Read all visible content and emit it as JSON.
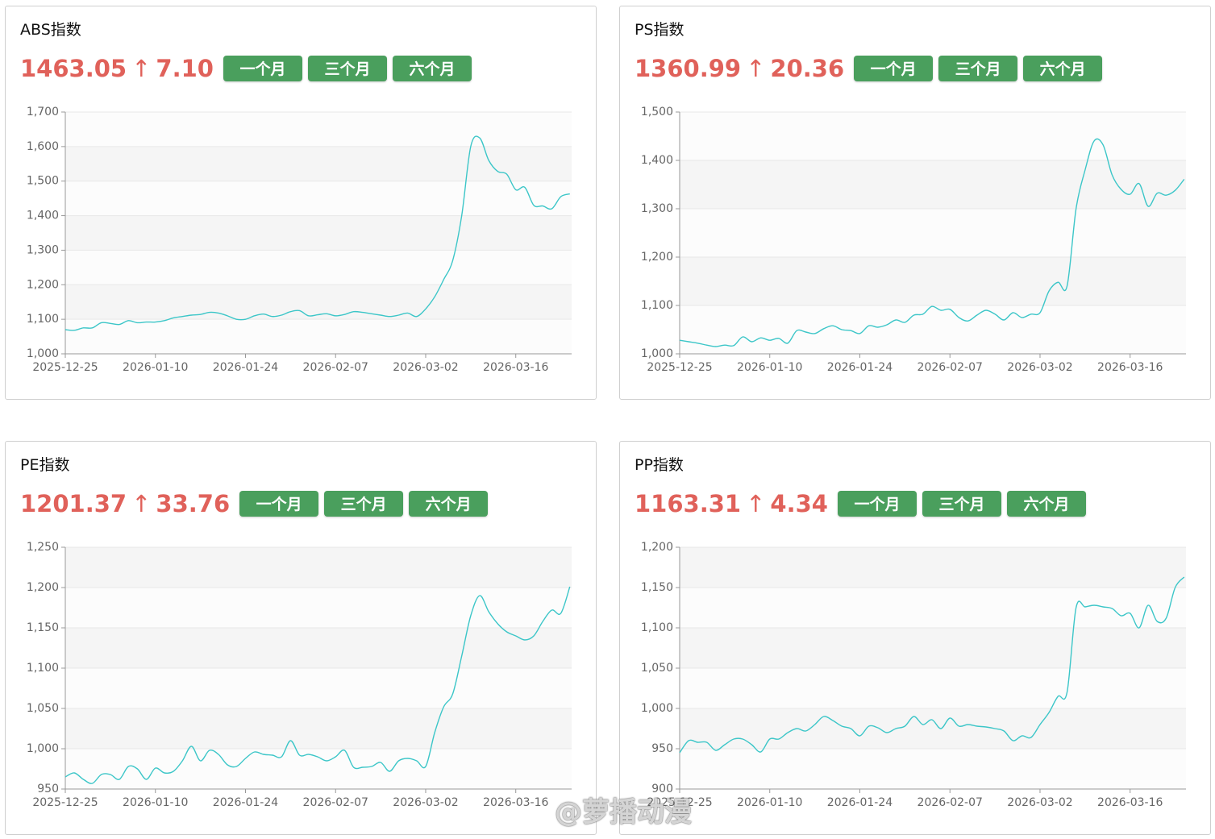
{
  "watermark": "@萝播动漫",
  "chart_data": [
    {
      "type": "line",
      "title": "ABS指数",
      "price": "1463.05",
      "arrow": "↑",
      "change": "7.10",
      "buttons": [
        "一个月",
        "三个月",
        "六个月"
      ],
      "categories": [
        "2025-12-25",
        null,
        null,
        null,
        null,
        null,
        null,
        null,
        null,
        null,
        "2026-01-10",
        null,
        null,
        null,
        null,
        null,
        null,
        null,
        null,
        null,
        "2026-01-24",
        null,
        null,
        null,
        null,
        null,
        null,
        null,
        null,
        null,
        "2026-02-07",
        null,
        null,
        null,
        null,
        null,
        null,
        null,
        null,
        null,
        "2026-03-02",
        null,
        null,
        null,
        null,
        null,
        null,
        null,
        null,
        null,
        "2026-03-16",
        null,
        null,
        null,
        null,
        null,
        null
      ],
      "values": [
        1070,
        1068,
        1075,
        1075,
        1090,
        1088,
        1085,
        1096,
        1090,
        1092,
        1092,
        1096,
        1104,
        1108,
        1112,
        1114,
        1120,
        1118,
        1110,
        1100,
        1100,
        1110,
        1115,
        1108,
        1112,
        1122,
        1125,
        1110,
        1113,
        1116,
        1110,
        1114,
        1122,
        1120,
        1116,
        1112,
        1108,
        1112,
        1118,
        1108,
        1130,
        1165,
        1215,
        1270,
        1400,
        1600,
        1625,
        1560,
        1528,
        1520,
        1475,
        1482,
        1430,
        1428,
        1420,
        1455,
        1463
      ],
      "color": "#3cc6c8",
      "grid": true,
      "split_area": true,
      "ylim": [
        1000,
        1700
      ],
      "yticks": [
        {
          "value": 1000,
          "label": "1,000"
        },
        {
          "value": 1100,
          "label": "1,100"
        },
        {
          "value": 1200,
          "label": "1,200"
        },
        {
          "value": 1300,
          "label": "1,300"
        },
        {
          "value": 1400,
          "label": "1,400"
        },
        {
          "value": 1500,
          "label": "1,500"
        },
        {
          "value": 1600,
          "label": "1,600"
        },
        {
          "value": 1700,
          "label": "1,700"
        }
      ]
    },
    {
      "type": "line",
      "title": "PS指数",
      "price": "1360.99",
      "arrow": "↑",
      "change": "20.36",
      "buttons": [
        "一个月",
        "三个月",
        "六个月"
      ],
      "categories": [
        "2025-12-25",
        null,
        null,
        null,
        null,
        null,
        null,
        null,
        null,
        null,
        "2026-01-10",
        null,
        null,
        null,
        null,
        null,
        null,
        null,
        null,
        null,
        "2026-01-24",
        null,
        null,
        null,
        null,
        null,
        null,
        null,
        null,
        null,
        "2026-02-07",
        null,
        null,
        null,
        null,
        null,
        null,
        null,
        null,
        null,
        "2026-03-02",
        null,
        null,
        null,
        null,
        null,
        null,
        null,
        null,
        null,
        "2026-03-16",
        null,
        null,
        null,
        null,
        null,
        null
      ],
      "values": [
        1028,
        1025,
        1022,
        1018,
        1015,
        1018,
        1017,
        1035,
        1025,
        1033,
        1028,
        1032,
        1022,
        1048,
        1045,
        1042,
        1052,
        1058,
        1050,
        1048,
        1042,
        1058,
        1055,
        1060,
        1070,
        1065,
        1080,
        1082,
        1098,
        1090,
        1092,
        1075,
        1068,
        1080,
        1090,
        1082,
        1070,
        1085,
        1075,
        1082,
        1085,
        1130,
        1148,
        1140,
        1300,
        1380,
        1440,
        1432,
        1370,
        1340,
        1330,
        1352,
        1305,
        1332,
        1328,
        1338,
        1361
      ],
      "color": "#3cc6c8",
      "grid": true,
      "split_area": true,
      "ylim": [
        1000,
        1500
      ],
      "yticks": [
        {
          "value": 1000,
          "label": "1,000"
        },
        {
          "value": 1100,
          "label": "1,100"
        },
        {
          "value": 1200,
          "label": "1,200"
        },
        {
          "value": 1300,
          "label": "1,300"
        },
        {
          "value": 1400,
          "label": "1,400"
        },
        {
          "value": 1500,
          "label": "1,500"
        }
      ]
    },
    {
      "type": "line",
      "title": "PE指数",
      "price": "1201.37",
      "arrow": "↑",
      "change": "33.76",
      "buttons": [
        "一个月",
        "三个月",
        "六个月"
      ],
      "categories": [
        "2025-12-25",
        null,
        null,
        null,
        null,
        null,
        null,
        null,
        null,
        null,
        "2026-01-10",
        null,
        null,
        null,
        null,
        null,
        null,
        null,
        null,
        null,
        "2026-01-24",
        null,
        null,
        null,
        null,
        null,
        null,
        null,
        null,
        null,
        "2026-02-07",
        null,
        null,
        null,
        null,
        null,
        null,
        null,
        null,
        null,
        "2026-03-02",
        null,
        null,
        null,
        null,
        null,
        null,
        null,
        null,
        null,
        "2026-03-16",
        null,
        null,
        null,
        null,
        null,
        null
      ],
      "values": [
        965,
        970,
        962,
        957,
        968,
        968,
        962,
        978,
        975,
        962,
        976,
        970,
        972,
        985,
        1003,
        985,
        998,
        993,
        980,
        978,
        988,
        996,
        993,
        992,
        990,
        1010,
        992,
        993,
        990,
        985,
        990,
        998,
        977,
        977,
        978,
        983,
        972,
        985,
        988,
        985,
        978,
        1020,
        1052,
        1068,
        1115,
        1165,
        1190,
        1170,
        1155,
        1145,
        1140,
        1135,
        1140,
        1158,
        1172,
        1168,
        1201
      ],
      "color": "#3cc6c8",
      "grid": true,
      "split_area": true,
      "ylim": [
        950,
        1250
      ],
      "yticks": [
        950,
        {
          "value": 1000,
          "label": "1,000"
        },
        {
          "value": 1050,
          "label": "1,050"
        },
        {
          "value": 1100,
          "label": "1,100"
        },
        {
          "value": 1150,
          "label": "1,150"
        },
        {
          "value": 1200,
          "label": "1,200"
        },
        {
          "value": 1250,
          "label": "1,250"
        }
      ]
    },
    {
      "type": "line",
      "title": "PP指数",
      "price": "1163.31",
      "arrow": "↑",
      "change": "4.34",
      "buttons": [
        "一个月",
        "三个月",
        "六个月"
      ],
      "categories": [
        "2025-12-25",
        null,
        null,
        null,
        null,
        null,
        null,
        null,
        null,
        null,
        "2026-01-10",
        null,
        null,
        null,
        null,
        null,
        null,
        null,
        null,
        null,
        "2026-01-24",
        null,
        null,
        null,
        null,
        null,
        null,
        null,
        null,
        null,
        "2026-02-07",
        null,
        null,
        null,
        null,
        null,
        null,
        null,
        null,
        null,
        "2026-03-02",
        null,
        null,
        null,
        null,
        null,
        null,
        null,
        null,
        null,
        "2026-03-16",
        null,
        null,
        null,
        null,
        null,
        null
      ],
      "values": [
        945,
        960,
        958,
        958,
        948,
        955,
        962,
        962,
        955,
        946,
        962,
        962,
        970,
        975,
        972,
        980,
        990,
        985,
        978,
        975,
        966,
        978,
        976,
        970,
        975,
        978,
        990,
        980,
        986,
        975,
        988,
        978,
        980,
        978,
        977,
        975,
        972,
        960,
        966,
        964,
        980,
        995,
        1015,
        1020,
        1125,
        1126,
        1128,
        1126,
        1124,
        1115,
        1118,
        1100,
        1128,
        1108,
        1112,
        1150,
        1163
      ],
      "color": "#3cc6c8",
      "grid": true,
      "split_area": true,
      "ylim": [
        900,
        1200
      ],
      "yticks": [
        900,
        950,
        {
          "value": 1000,
          "label": "1,000"
        },
        {
          "value": 1050,
          "label": "1,050"
        },
        {
          "value": 1100,
          "label": "1,100"
        },
        {
          "value": 1150,
          "label": "1,150"
        },
        {
          "value": 1200,
          "label": "1,200"
        }
      ]
    }
  ]
}
